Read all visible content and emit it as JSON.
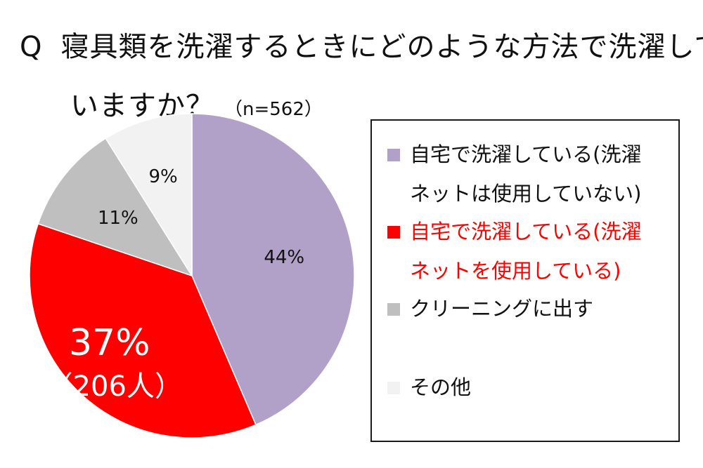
{
  "title": {
    "q_mark": "Q",
    "line1": "寝具類を洗濯するときにどのような方法で洗濯して",
    "line2": "いますか？",
    "n_note": "（n=562）"
  },
  "chart_data": {
    "type": "pie",
    "start_angle_deg": 0,
    "direction": "clockwise",
    "slices": [
      {
        "label": "自宅で洗濯している(洗濯ネットは使用していない)",
        "value": 44,
        "percent_label": "44%",
        "color": "#b1a0c8"
      },
      {
        "label": "自宅で洗濯している(洗濯ネットを使用している)",
        "value": 37,
        "percent_label": "37%",
        "count_label": "（206人）",
        "color": "#ff0000",
        "highlight": true
      },
      {
        "label": "クリーニングに出す",
        "value": 11,
        "percent_label": "11%",
        "color": "#bfbfbf"
      },
      {
        "label": "その他",
        "value": 9,
        "percent_label": "9%",
        "color": "#f2f2f2"
      }
    ]
  },
  "legend": {
    "items": [
      {
        "line1": "自宅で洗濯している(洗濯",
        "line2": "ネットは使用していない)",
        "color": "#b1a0c8",
        "text_color": "#111111"
      },
      {
        "line1": "自宅で洗濯している(洗濯",
        "line2": "ネットを使用している)",
        "color": "#ff0000",
        "text_color": "#ff0000"
      },
      {
        "line1": "クリーニングに出す",
        "line2": "",
        "color": "#bfbfbf",
        "text_color": "#111111"
      },
      {
        "line1": "その他",
        "line2": "",
        "color": "#f2f2f2",
        "text_color": "#111111"
      }
    ]
  }
}
